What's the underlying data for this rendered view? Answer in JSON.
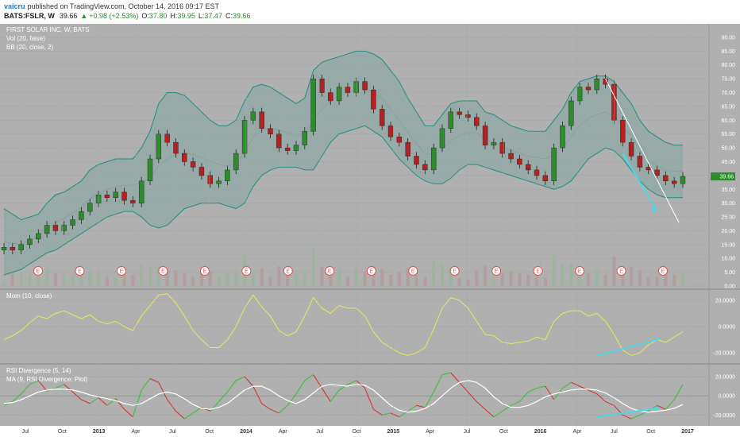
{
  "header": {
    "author": "vaicru",
    "published_text": "published on TradingView.com, October 14, 2016 09:17 EST",
    "symbol_line": "BATS:FSLR, W",
    "last_price": "39.66",
    "change_text": "+0.98 (+2.53%)",
    "ohlc": {
      "o_label": "O:",
      "o_value": "37.80",
      "h_label": "H:",
      "h_value": "39.95",
      "l_label": "L:",
      "l_value": "37.47",
      "c_label": "C:",
      "c_value": "39.66"
    }
  },
  "colors": {
    "background": "#b0b0b0",
    "bb_fill": "#8fa8a5",
    "bb_line": "#1f8f7f",
    "up_candle": "#2e8b2e",
    "down_candle": "#b22222",
    "momentum": "#e8e85a",
    "rsi_up": "#2ec42e",
    "rsi_down": "#d42a2a",
    "ma_line": "#ffffff",
    "arrow": "#4fd6e6",
    "earnings": "#d9534f"
  },
  "chart_data": [
    {
      "type": "candlestick",
      "pane": "price",
      "title": "FIRST SOLAR INC, W, BATS",
      "legend": [
        "Vol (20, false)",
        "BB (20, close, 2)"
      ],
      "y_ticks": [
        "90.00",
        "85.00",
        "80.00",
        "75.00",
        "70.00",
        "65.00",
        "60.00",
        "55.00",
        "50.00",
        "45.00",
        "40.00",
        "35.00",
        "30.00",
        "25.00",
        "20.00",
        "15.00",
        "10.00",
        "5.00",
        "0.00"
      ],
      "ylim": [
        0,
        92
      ],
      "x_ticks": [
        "Jul",
        "Oct",
        "2013",
        "Apr",
        "Jul",
        "Oct",
        "2014",
        "Apr",
        "Jul",
        "Oct",
        "2015",
        "Apr",
        "Jul",
        "Oct",
        "2016",
        "Apr",
        "Jul",
        "Oct",
        "2017"
      ],
      "last_value": "39.66",
      "earnings_marker": "E",
      "earnings_count": 16,
      "close_series": [
        14,
        13,
        15,
        17,
        19,
        22,
        20,
        22,
        24,
        27,
        30,
        33,
        32,
        34,
        31,
        30,
        38,
        46,
        55,
        52,
        48,
        45,
        43,
        40,
        37,
        38,
        42,
        48,
        60,
        63,
        57,
        55,
        50,
        49,
        51,
        56,
        75,
        70,
        67,
        72,
        70,
        74,
        71,
        64,
        58,
        54,
        52,
        47,
        44,
        42,
        50,
        57,
        63,
        62,
        61,
        58,
        51,
        52,
        48,
        46,
        44,
        42,
        40,
        38,
        50,
        58,
        67,
        72,
        71,
        75,
        73,
        60,
        52,
        47,
        43,
        42,
        40,
        38,
        37,
        39.66
      ],
      "bb_upper": [
        28,
        26,
        24,
        25,
        26,
        30,
        33,
        34,
        36,
        38,
        42,
        44,
        45,
        46,
        46,
        46,
        50,
        56,
        66,
        70,
        70,
        69,
        66,
        63,
        60,
        58,
        58,
        60,
        67,
        72,
        73,
        72,
        70,
        68,
        66,
        68,
        78,
        81,
        82,
        83,
        84,
        85,
        85,
        84,
        82,
        78,
        74,
        68,
        63,
        58,
        58,
        62,
        66,
        67,
        67,
        67,
        63,
        62,
        60,
        58,
        57,
        56,
        56,
        56,
        60,
        64,
        70,
        74,
        75,
        76,
        76,
        74,
        70,
        66,
        60,
        56,
        54,
        52,
        51,
        51
      ],
      "bb_lower": [
        4,
        5,
        6,
        8,
        10,
        12,
        13,
        15,
        17,
        19,
        21,
        23,
        25,
        26,
        27,
        27,
        25,
        22,
        21,
        22,
        25,
        28,
        29,
        30,
        30,
        30,
        29,
        28,
        30,
        36,
        40,
        42,
        43,
        43,
        43,
        42,
        42,
        47,
        52,
        55,
        56,
        57,
        58,
        56,
        54,
        50,
        46,
        43,
        40,
        38,
        37,
        37,
        39,
        42,
        44,
        44,
        43,
        42,
        41,
        40,
        39,
        38,
        37,
        36,
        35,
        36,
        38,
        42,
        46,
        48,
        50,
        49,
        46,
        42,
        38,
        35,
        33,
        32,
        32,
        32
      ],
      "volume_note": "volume bars shown at bottom of price pane"
    },
    {
      "type": "line",
      "pane": "momentum",
      "title": "Mom (10, close)",
      "y_ticks": [
        "20.0000",
        "0.0000",
        "-20.0000"
      ],
      "ylim": [
        -26,
        26
      ],
      "values": [
        -10,
        -7,
        -3,
        3,
        8,
        6,
        10,
        12,
        9,
        6,
        9,
        4,
        2,
        4,
        0,
        -3,
        8,
        16,
        24,
        25,
        18,
        8,
        -3,
        -10,
        -16,
        -16,
        -10,
        0,
        14,
        24,
        15,
        8,
        -3,
        -7,
        -4,
        8,
        22,
        14,
        10,
        16,
        14,
        14,
        8,
        -4,
        -12,
        -16,
        -20,
        -22,
        -20,
        -16,
        -2,
        14,
        22,
        20,
        14,
        4,
        -6,
        -7,
        -12,
        -13,
        -12,
        -11,
        -8,
        -10,
        4,
        10,
        12,
        12,
        8,
        10,
        4,
        -6,
        -18,
        -22,
        -20,
        -14,
        -10,
        -12,
        -8,
        -4
      ],
      "annotation_arrow": "rising trend line from mid 2016 to Oct 2016"
    },
    {
      "type": "line",
      "pane": "rsi",
      "title": "RSI Divergence (5, 14)",
      "legend": [
        "MA (9, RSI Divergence: Plot)"
      ],
      "y_ticks": [
        "20.0000",
        "0.0000",
        "-20.0000"
      ],
      "ylim": [
        -28,
        30
      ],
      "rsi_values": [
        -10,
        -6,
        2,
        12,
        16,
        5,
        8,
        12,
        4,
        -4,
        -8,
        -2,
        -10,
        -3,
        -14,
        -22,
        6,
        18,
        14,
        -4,
        -16,
        -24,
        -18,
        -12,
        -16,
        -6,
        4,
        16,
        20,
        10,
        -8,
        -14,
        -18,
        -10,
        2,
        16,
        22,
        8,
        -6,
        6,
        12,
        16,
        8,
        -14,
        -20,
        -18,
        -22,
        -16,
        -10,
        -12,
        4,
        22,
        24,
        14,
        4,
        -6,
        -14,
        -22,
        -16,
        -10,
        -6,
        4,
        8,
        10,
        -4,
        8,
        14,
        10,
        6,
        2,
        -6,
        -10,
        -20,
        -24,
        -20,
        -16,
        -10,
        -14,
        -4,
        12
      ],
      "ma_values": [
        -8,
        -7,
        -4,
        0,
        4,
        6,
        7,
        7,
        6,
        4,
        1,
        -1,
        -3,
        -5,
        -8,
        -10,
        -8,
        -3,
        2,
        4,
        2,
        -3,
        -9,
        -13,
        -14,
        -12,
        -8,
        -1,
        6,
        10,
        10,
        6,
        0,
        -5,
        -8,
        -4,
        3,
        10,
        12,
        11,
        10,
        12,
        11,
        6,
        -2,
        -10,
        -15,
        -17,
        -16,
        -13,
        -8,
        0,
        8,
        14,
        16,
        14,
        8,
        -1,
        -8,
        -12,
        -12,
        -10,
        -6,
        -1,
        2,
        4,
        6,
        7,
        7,
        6,
        3,
        -2,
        -8,
        -13,
        -16,
        -17,
        -16,
        -15,
        -13,
        -9
      ],
      "annotation_arrow": "rising trend line from Jul 2016 to Oct 2016"
    }
  ]
}
